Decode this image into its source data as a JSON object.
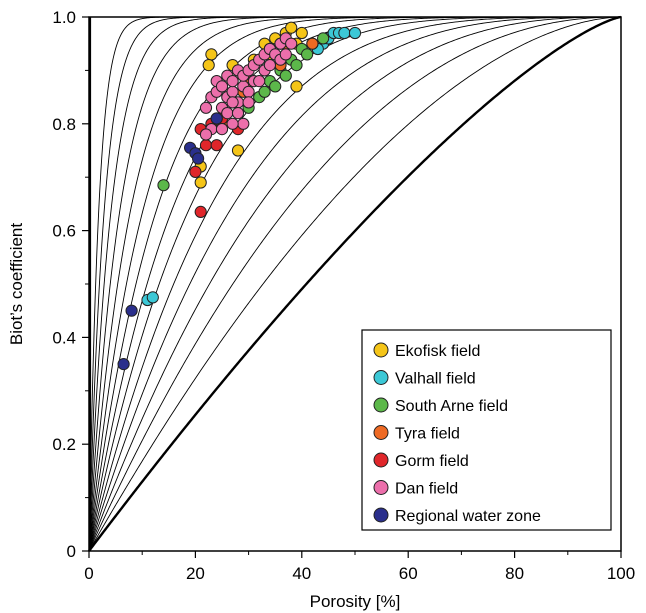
{
  "chart_data": {
    "type": "scatter",
    "xlabel": "Porosity [%]",
    "ylabel": "Biot’s coefficient",
    "xlim": [
      0,
      100
    ],
    "ylim": [
      0,
      1.0
    ],
    "x_ticks": [
      "0",
      "20",
      "40",
      "60",
      "80",
      "100"
    ],
    "y_ticks": [
      "0",
      "0.2",
      "0.4",
      "0.6",
      "0.8",
      "1.0"
    ],
    "x_tick_values": [
      0,
      20,
      40,
      60,
      80,
      100
    ],
    "y_tick_values": [
      0,
      0.2,
      0.4,
      0.6,
      0.8,
      1.0
    ],
    "grid": false,
    "legend_position": "bottom-right",
    "model_curve_exponents": [
      1.32,
      1.75,
      2.2,
      2.7,
      3.3,
      4.0,
      4.9,
      6.0,
      7.5,
      9.5,
      12.5,
      17,
      24,
      35,
      55
    ],
    "series": [
      {
        "name": "Ekofisk field",
        "color": "#f5c518",
        "points": [
          [
            23,
            0.93
          ],
          [
            22.5,
            0.91
          ],
          [
            27,
            0.91
          ],
          [
            33,
            0.95
          ],
          [
            35,
            0.96
          ],
          [
            37,
            0.97
          ],
          [
            38,
            0.98
          ],
          [
            36,
            0.95
          ],
          [
            40,
            0.97
          ],
          [
            39,
            0.87
          ],
          [
            28,
            0.75
          ],
          [
            21,
            0.72
          ],
          [
            21,
            0.69
          ],
          [
            31,
            0.92
          ],
          [
            34,
            0.93
          ],
          [
            39,
            0.95
          ]
        ]
      },
      {
        "name": "Valhall field",
        "color": "#3cc8d6",
        "points": [
          [
            44,
            0.95
          ],
          [
            45,
            0.96
          ],
          [
            46,
            0.97
          ],
          [
            47,
            0.97
          ],
          [
            48,
            0.97
          ],
          [
            50,
            0.97
          ],
          [
            43,
            0.94
          ],
          [
            11,
            0.47
          ],
          [
            12,
            0.475
          ]
        ]
      },
      {
        "name": "South Arne field",
        "color": "#5cb84a",
        "points": [
          [
            14,
            0.685
          ],
          [
            30,
            0.83
          ],
          [
            32,
            0.85
          ],
          [
            34,
            0.88
          ],
          [
            36,
            0.9
          ],
          [
            38,
            0.92
          ],
          [
            40,
            0.94
          ],
          [
            42,
            0.95
          ],
          [
            44,
            0.96
          ],
          [
            37,
            0.89
          ],
          [
            35,
            0.87
          ],
          [
            39,
            0.91
          ],
          [
            41,
            0.93
          ],
          [
            33,
            0.86
          ]
        ]
      },
      {
        "name": "Tyra field",
        "color": "#ee6a24",
        "points": [
          [
            34,
            0.94
          ],
          [
            37,
            0.95
          ],
          [
            42,
            0.95
          ],
          [
            30,
            0.88
          ],
          [
            36,
            0.91
          ],
          [
            25,
            0.8
          ],
          [
            29,
            0.86
          ]
        ]
      },
      {
        "name": "Gorm field",
        "color": "#e0262a",
        "points": [
          [
            21,
            0.635
          ],
          [
            20,
            0.71
          ],
          [
            22,
            0.76
          ],
          [
            24,
            0.76
          ],
          [
            21,
            0.79
          ],
          [
            28,
            0.79
          ],
          [
            23,
            0.8
          ],
          [
            25,
            0.81
          ]
        ]
      },
      {
        "name": "Dan field",
        "color": "#ec6fab",
        "points": [
          [
            22,
            0.83
          ],
          [
            23,
            0.85
          ],
          [
            24,
            0.86
          ],
          [
            24,
            0.88
          ],
          [
            25,
            0.87
          ],
          [
            26,
            0.89
          ],
          [
            26,
            0.85
          ],
          [
            27,
            0.86
          ],
          [
            27,
            0.88
          ],
          [
            28,
            0.9
          ],
          [
            28,
            0.84
          ],
          [
            29,
            0.87
          ],
          [
            29,
            0.89
          ],
          [
            30,
            0.9
          ],
          [
            30,
            0.86
          ],
          [
            31,
            0.91
          ],
          [
            31,
            0.88
          ],
          [
            32,
            0.92
          ],
          [
            33,
            0.93
          ],
          [
            33,
            0.9
          ],
          [
            34,
            0.94
          ],
          [
            35,
            0.93
          ],
          [
            36,
            0.95
          ],
          [
            36,
            0.92
          ],
          [
            37,
            0.96
          ],
          [
            37,
            0.93
          ],
          [
            38,
            0.95
          ],
          [
            25,
            0.83
          ],
          [
            26,
            0.82
          ],
          [
            27,
            0.84
          ],
          [
            28,
            0.82
          ],
          [
            29,
            0.8
          ],
          [
            24,
            0.81
          ],
          [
            23,
            0.79
          ],
          [
            22,
            0.78
          ],
          [
            25,
            0.79
          ],
          [
            27,
            0.8
          ],
          [
            30,
            0.84
          ],
          [
            32,
            0.88
          ],
          [
            34,
            0.91
          ]
        ]
      },
      {
        "name": "Regional water zone",
        "color": "#2a2f8c",
        "points": [
          [
            19,
            0.755
          ],
          [
            20,
            0.745
          ],
          [
            20.5,
            0.735
          ],
          [
            24,
            0.81
          ],
          [
            8,
            0.45
          ],
          [
            6.5,
            0.35
          ]
        ]
      }
    ]
  }
}
